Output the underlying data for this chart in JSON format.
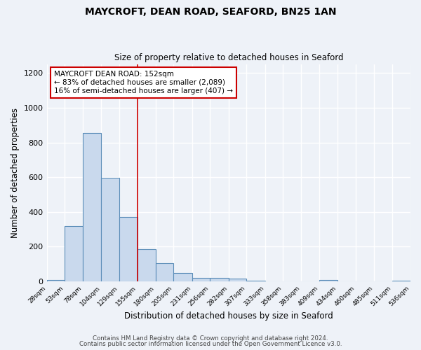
{
  "title": "MAYCROFT, DEAN ROAD, SEAFORD, BN25 1AN",
  "subtitle": "Size of property relative to detached houses in Seaford",
  "xlabel": "Distribution of detached houses by size in Seaford",
  "ylabel": "Number of detached properties",
  "bar_color": "#c9d9ed",
  "bar_edge_color": "#5b8db8",
  "background_color": "#eef2f8",
  "grid_color": "#ffffff",
  "bin_edges": [
    28,
    53,
    78,
    104,
    129,
    155,
    180,
    205,
    231,
    256,
    282,
    307,
    333,
    358,
    383,
    409,
    434,
    460,
    485,
    511,
    536
  ],
  "bin_labels": [
    "28sqm",
    "53sqm",
    "78sqm",
    "104sqm",
    "129sqm",
    "155sqm",
    "180sqm",
    "205sqm",
    "231sqm",
    "256sqm",
    "282sqm",
    "307sqm",
    "333sqm",
    "358sqm",
    "383sqm",
    "409sqm",
    "434sqm",
    "460sqm",
    "485sqm",
    "511sqm",
    "536sqm"
  ],
  "counts": [
    10,
    320,
    855,
    595,
    370,
    185,
    105,
    47,
    20,
    20,
    18,
    5,
    0,
    0,
    0,
    8,
    0,
    0,
    0,
    3,
    0
  ],
  "vline_x": 155,
  "vline_color": "#cc0000",
  "annotation_title": "MAYCROFT DEAN ROAD: 152sqm",
  "annotation_line1": "← 83% of detached houses are smaller (2,089)",
  "annotation_line2": "16% of semi-detached houses are larger (407) →",
  "annotation_box_color": "#ffffff",
  "annotation_box_edge": "#cc0000",
  "ylim": [
    0,
    1250
  ],
  "yticks": [
    0,
    200,
    400,
    600,
    800,
    1000,
    1200
  ],
  "footer1": "Contains HM Land Registry data © Crown copyright and database right 2024.",
  "footer2": "Contains public sector information licensed under the Open Government Licence v3.0."
}
